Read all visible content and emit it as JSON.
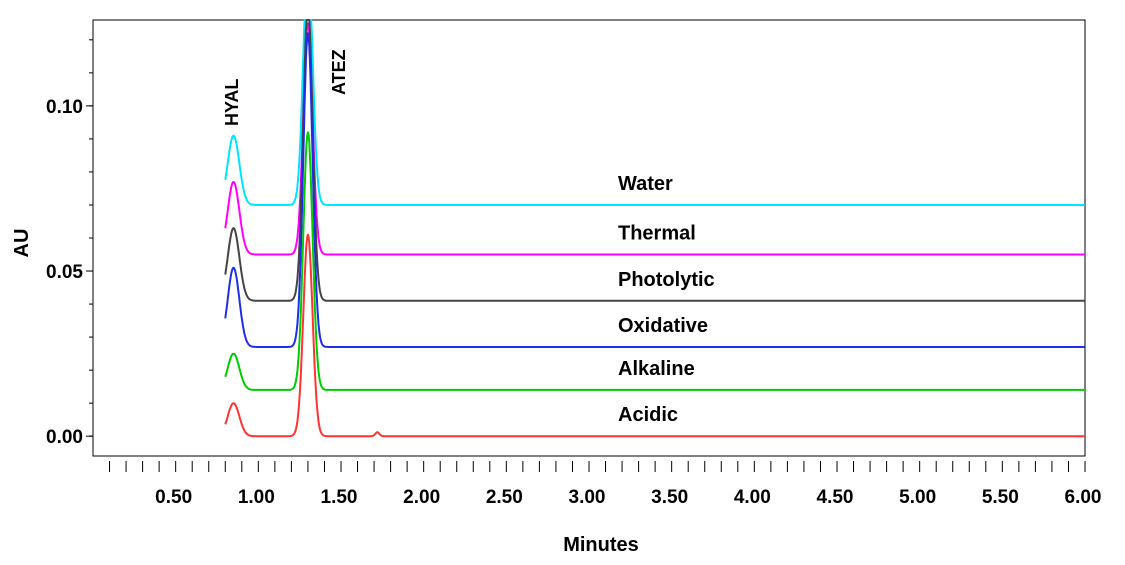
{
  "chart_data": {
    "type": "line",
    "xlabel": "Minutes",
    "ylabel": "AU",
    "xlim": [
      0,
      6.0
    ],
    "ylim": [
      -0.006,
      0.126
    ],
    "x_ticks": [
      "0.50",
      "1.00",
      "1.50",
      "2.00",
      "2.50",
      "3.00",
      "3.50",
      "4.00",
      "4.50",
      "5.00",
      "5.50",
      "6.00"
    ],
    "y_ticks": [
      "0.00",
      "0.05",
      "0.10"
    ],
    "peak_labels": [
      {
        "text": "HYAL",
        "x": 0.85
      },
      {
        "text": "ATEZ",
        "x": 1.3
      }
    ],
    "series": [
      {
        "name": "Water",
        "color": "#00e5ff",
        "baseline": 0.07,
        "hyal_height": 0.021,
        "atez_height": 0.075
      },
      {
        "name": "Thermal",
        "color": "#ff00ff",
        "baseline": 0.055,
        "hyal_height": 0.022,
        "atez_height": 0.07
      },
      {
        "name": "Photolytic",
        "color": "#444444",
        "baseline": 0.041,
        "hyal_height": 0.022,
        "atez_height": 0.09
      },
      {
        "name": "Oxidative",
        "color": "#1f2ee6",
        "baseline": 0.027,
        "hyal_height": 0.024,
        "atez_height": 0.095
      },
      {
        "name": "Alkaline",
        "color": "#00cc00",
        "baseline": 0.014,
        "hyal_height": 0.011,
        "atez_height": 0.078
      },
      {
        "name": "Acidic",
        "color": "#ff3333",
        "baseline": 0.0,
        "hyal_height": 0.01,
        "atez_height": 0.061
      }
    ]
  }
}
